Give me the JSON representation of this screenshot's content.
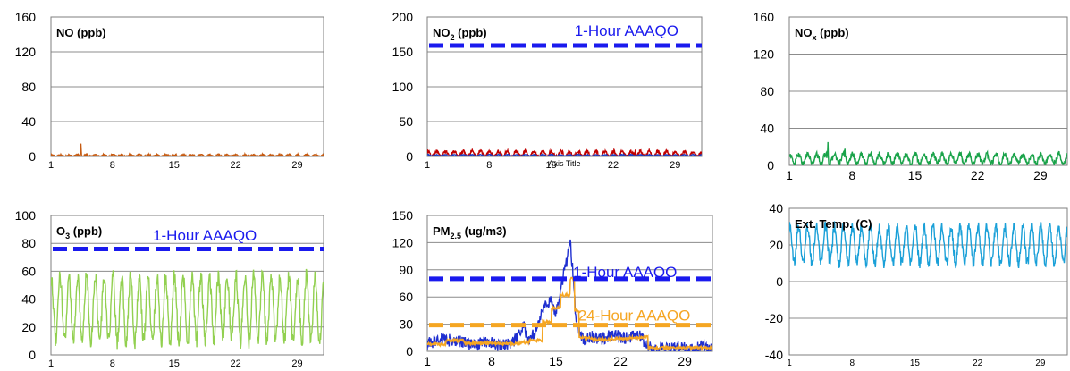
{
  "chart_data": [
    {
      "id": "no",
      "type": "line",
      "title": "NO (ppb)",
      "title_sub": "",
      "title_suffix": "",
      "ylim": [
        0,
        160
      ],
      "yticks": [
        0,
        40,
        80,
        120,
        160
      ],
      "xlim": [
        1,
        32
      ],
      "xticks": [
        1,
        8,
        15,
        22,
        29
      ],
      "grid": true,
      "axis_title_placeholder": "",
      "colors": {
        "series": "#c55a11"
      },
      "series": [
        {
          "baseline": 1.0,
          "amplitude": 1.0,
          "period": 1.0,
          "noise": 0.8,
          "spikes": [
            [
              4.4,
              15
            ]
          ]
        }
      ],
      "reference_lines": []
    },
    {
      "id": "no2",
      "type": "line",
      "title": "NO",
      "title_sub": "2",
      "title_suffix": " (ppb)",
      "ylim": [
        0,
        200
      ],
      "yticks": [
        0,
        50,
        100,
        150,
        200
      ],
      "xlim": [
        1,
        32
      ],
      "xticks": [
        1,
        8,
        15,
        22,
        29
      ],
      "grid": true,
      "axis_title_placeholder": "Axis Title",
      "colors": {
        "series": "#c00000",
        "series2": "#1f3fbf"
      },
      "series": [
        {
          "baseline": 3.5,
          "amplitude": 4.0,
          "period": 1.0,
          "noise": 2.5,
          "spikes": [
            [
              16.3,
              10
            ],
            [
              24.5,
              11
            ]
          ]
        },
        {
          "baseline": 1.5,
          "amplitude": 1.0,
          "period": 1.0,
          "noise": 0.6,
          "spikes": []
        }
      ],
      "reference_lines": [
        {
          "label": "1-Hour AAAQO",
          "value": 159,
          "color": "#1a1aee",
          "label_x": 23.5,
          "label_y": 181
        }
      ]
    },
    {
      "id": "nox",
      "type": "line",
      "title": "NO",
      "title_sub": "x",
      "title_suffix": " (ppb)",
      "ylim": [
        0,
        160
      ],
      "yticks": [
        0,
        40,
        80,
        120,
        160
      ],
      "xlim": [
        1,
        32
      ],
      "xticks": [
        1,
        8,
        15,
        22,
        29
      ],
      "grid": true,
      "axis_title_placeholder": "",
      "colors": {
        "series": "#1aa34a"
      },
      "series": [
        {
          "baseline": 7,
          "amplitude": 5,
          "period": 1.0,
          "noise": 3,
          "spikes": [
            [
              5.3,
              27
            ],
            [
              7.2,
              18
            ]
          ]
        }
      ],
      "reference_lines": []
    },
    {
      "id": "o3",
      "type": "line",
      "title": "O",
      "title_sub": "3",
      "title_suffix": " (ppb)",
      "ylim": [
        0,
        100
      ],
      "yticks": [
        0,
        20,
        40,
        60,
        80,
        100
      ],
      "xlim": [
        1,
        32
      ],
      "xticks": [
        1,
        8,
        15,
        22,
        29
      ],
      "grid": true,
      "axis_title_placeholder": "",
      "colors": {
        "series": "#92d050"
      },
      "series": [
        {
          "baseline": 33,
          "amplitude": 23,
          "period": 1.0,
          "noise": 6,
          "spikes": []
        }
      ],
      "reference_lines": [
        {
          "label": "1-Hour AAAQO",
          "value": 76,
          "color": "#1a1aee",
          "label_x": 18.5,
          "label_y": 86
        }
      ]
    },
    {
      "id": "pm25",
      "type": "line",
      "title": "PM",
      "title_sub": "2.5",
      "title_suffix": " (ug/m3)",
      "ylim": [
        0,
        150
      ],
      "yticks": [
        0,
        30,
        60,
        90,
        120,
        150
      ],
      "xlim": [
        1,
        32
      ],
      "xticks": [
        1,
        8,
        15,
        22,
        29
      ],
      "grid": true,
      "axis_title_placeholder": "",
      "colors": {
        "series": "#1f2fd0",
        "series2": "#f5a623"
      },
      "series": [
        {
          "segments": [
            [
              1,
              8
            ],
            [
              2.5,
              14
            ],
            [
              3.5,
              12
            ],
            [
              5,
              10
            ],
            [
              6,
              6
            ],
            [
              7,
              9
            ],
            [
              8,
              11
            ],
            [
              9,
              5
            ],
            [
              10.5,
              12
            ],
            [
              11.5,
              30
            ],
            [
              12,
              10
            ],
            [
              12.8,
              22
            ],
            [
              13.5,
              45
            ],
            [
              14.5,
              58
            ],
            [
              15,
              40
            ],
            [
              15.5,
              70
            ],
            [
              16.2,
              100
            ],
            [
              16.5,
              125
            ],
            [
              16.8,
              90
            ],
            [
              17.2,
              30
            ],
            [
              18,
              12
            ],
            [
              19,
              16
            ],
            [
              20,
              14
            ],
            [
              21,
              18
            ],
            [
              22.5,
              15
            ],
            [
              24,
              19
            ],
            [
              25,
              5
            ],
            [
              26,
              4
            ],
            [
              27,
              3
            ],
            [
              28,
              5
            ],
            [
              29,
              4
            ],
            [
              30,
              3
            ],
            [
              31,
              6
            ],
            [
              32,
              5
            ]
          ],
          "noise": 7,
          "color_key": "series"
        },
        {
          "segments": [
            [
              1,
              8
            ],
            [
              3,
              12
            ],
            [
              5,
              9
            ],
            [
              7,
              9
            ],
            [
              9,
              8
            ],
            [
              11,
              10
            ],
            [
              12,
              12
            ],
            [
              13.5,
              32
            ],
            [
              14.5,
              48
            ],
            [
              15.5,
              62
            ],
            [
              16.5,
              80
            ],
            [
              17,
              45
            ],
            [
              17.5,
              15
            ],
            [
              19,
              13
            ],
            [
              21,
              14
            ],
            [
              23,
              15
            ],
            [
              24.5,
              16
            ],
            [
              25,
              4
            ],
            [
              27,
              4
            ],
            [
              29,
              4
            ],
            [
              31,
              4
            ],
            [
              32,
              4
            ]
          ],
          "noise": 1.5,
          "color_key": "series2",
          "step": true
        }
      ],
      "reference_lines": [
        {
          "label": "1-Hour AAAQO",
          "value": 80,
          "color": "#1a1aee",
          "label_x": 22.5,
          "label_y": 88
        },
        {
          "label": "24-Hour AAAQO",
          "value": 29,
          "color": "#f5a623",
          "label_x": 23.5,
          "label_y": 40
        }
      ]
    },
    {
      "id": "temp",
      "type": "line",
      "title": "Ext. Temp. (C)",
      "title_sub": "",
      "title_suffix": "",
      "ylim": [
        -40,
        40
      ],
      "yticks": [
        -40,
        -20,
        0,
        20,
        40
      ],
      "xlim": [
        1,
        32
      ],
      "xticks": [
        1,
        8,
        15,
        22,
        29
      ],
      "grid": true,
      "axis_title_placeholder": "",
      "colors": {
        "series": "#1aa0d8"
      },
      "series": [
        {
          "baseline": 20,
          "amplitude": 10,
          "period": 1.0,
          "noise": 3,
          "spikes": []
        }
      ],
      "reference_lines": []
    }
  ]
}
